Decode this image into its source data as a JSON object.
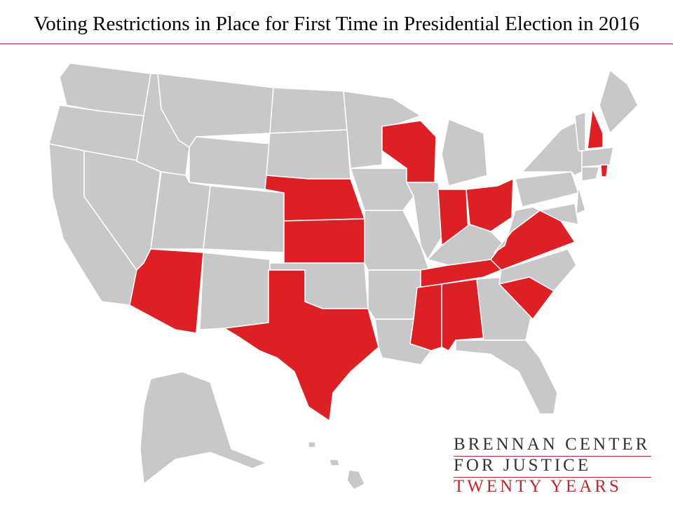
{
  "title": "Voting Restrictions in Place for First Time in Presidential Election in 2016",
  "logo": {
    "line1": "BRENNAN CENTER",
    "line2": "FOR JUSTICE",
    "line3": "TWENTY YEARS"
  }
}
